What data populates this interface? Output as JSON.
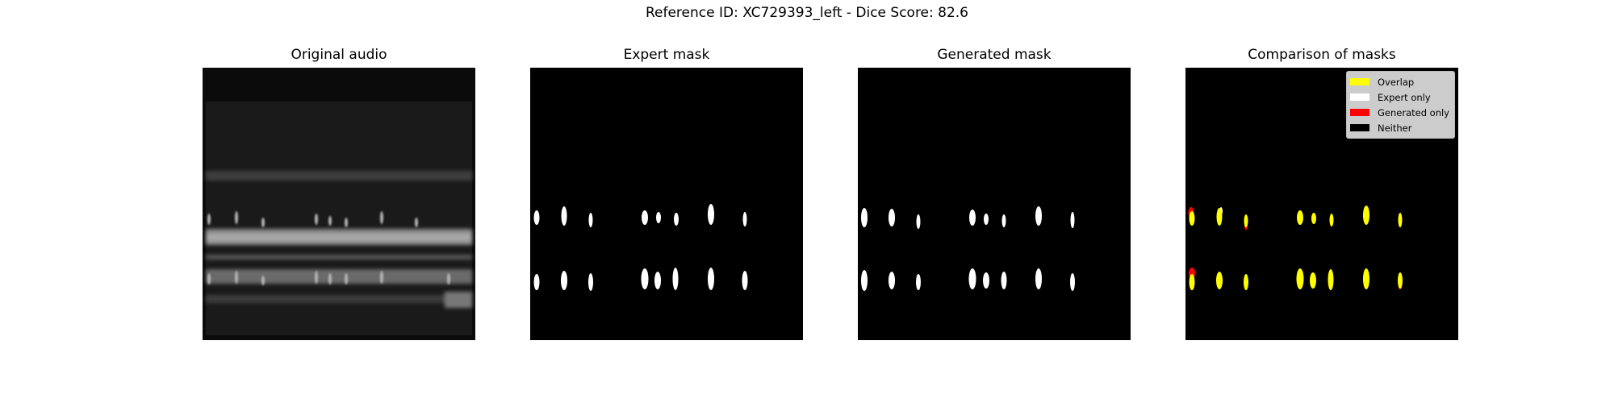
{
  "figure": {
    "suptitle": "Reference ID: XC729393_left - Dice Score: 82.6"
  },
  "panels": [
    {
      "title": "Original audio"
    },
    {
      "title": "Expert mask"
    },
    {
      "title": "Generated mask"
    },
    {
      "title": "Comparison of masks"
    }
  ],
  "legend": {
    "items": [
      {
        "label": "Overlap",
        "color": "#ffff00"
      },
      {
        "label": "Expert only",
        "color": "#ffffff"
      },
      {
        "label": "Generated only",
        "color": "#ff0000"
      },
      {
        "label": "Neither",
        "color": "#000000"
      }
    ]
  },
  "colors": {
    "mask_fg": "#ffffff",
    "mask_bg": "#000000",
    "overlap": "#ffff00",
    "generated_only": "#ff0000"
  }
}
